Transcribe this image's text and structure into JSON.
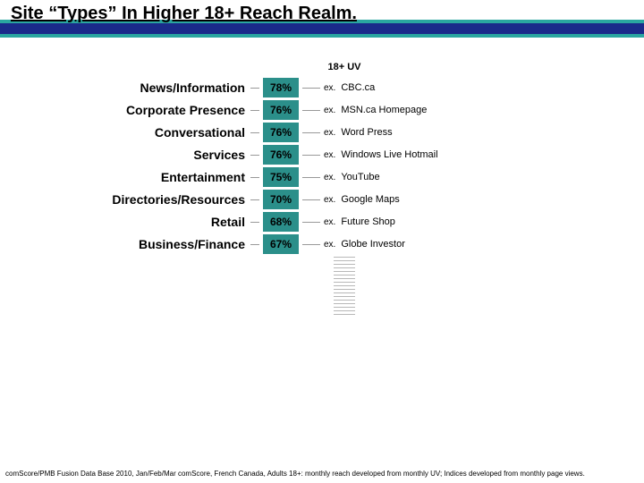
{
  "title": "Site “Types” In Higher 18+ Reach Realm.",
  "header": "18+ UV",
  "example_prefix": "ex.",
  "title_stripe_colors": {
    "teal": "#2aa6a0",
    "blue": "#1a2a8a"
  },
  "pct_box": {
    "bg": "#2b8f8a",
    "text": "#000000",
    "fontsize": 12
  },
  "label_style": {
    "fontsize": 14,
    "weight": "bold",
    "color": "#000000"
  },
  "example_style": {
    "fontsize": 11,
    "color": "#000000"
  },
  "tail_tick_count": 17,
  "rows": [
    {
      "label": "News/Information",
      "pct": "78%",
      "example": "CBC.ca"
    },
    {
      "label": "Corporate Presence",
      "pct": "76%",
      "example": "MSN.ca Homepage"
    },
    {
      "label": "Conversational",
      "pct": "76%",
      "example": "Word Press"
    },
    {
      "label": "Services",
      "pct": "76%",
      "example": "Windows Live Hotmail"
    },
    {
      "label": "Entertainment",
      "pct": "75%",
      "example": "YouTube"
    },
    {
      "label": "Directories/Resources",
      "pct": "70%",
      "example": "Google Maps"
    },
    {
      "label": "Retail",
      "pct": "68%",
      "example": "Future Shop"
    },
    {
      "label": "Business/Finance",
      "pct": "67%",
      "example": "Globe Investor"
    }
  ],
  "footnote": "comScore/PMB Fusion Data Base 2010, Jan/Feb/Mar comScore, French Canada, Adults 18+: monthly reach developed from monthly UV; Indices developed from monthly page views."
}
